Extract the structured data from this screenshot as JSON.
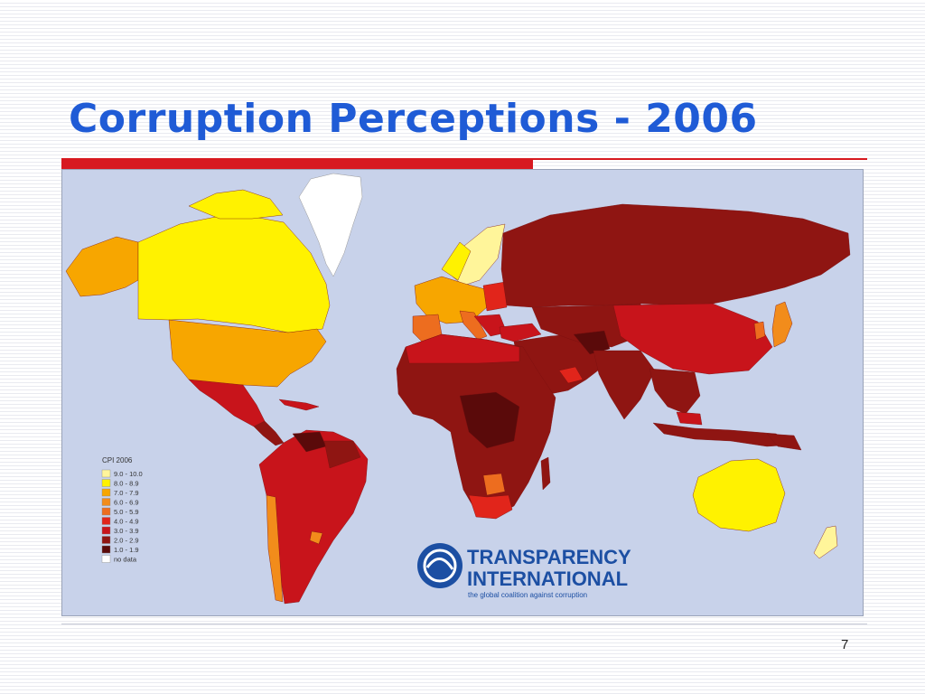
{
  "slide": {
    "title": "Corruption Perceptions - 2006",
    "page_number": "7"
  },
  "colors": {
    "title": "#1f5bd6",
    "accent_rule": "#d71920",
    "ocean": "#c8d2ea",
    "no_data": "#ffffff"
  },
  "map": {
    "legend": {
      "title": "CPI 2006",
      "items": [
        {
          "range": "9.0 - 10.0",
          "color": "#fff59a"
        },
        {
          "range": "8.0 - 8.9",
          "color": "#fff200"
        },
        {
          "range": "7.0 - 7.9",
          "color": "#f7a600"
        },
        {
          "range": "6.0 - 6.9",
          "color": "#f28c1b"
        },
        {
          "range": "5.0 - 5.9",
          "color": "#ed6d1f"
        },
        {
          "range": "4.0 - 4.9",
          "color": "#e1251b"
        },
        {
          "range": "3.0 - 3.9",
          "color": "#c8141b"
        },
        {
          "range": "2.0 - 2.9",
          "color": "#8f1512"
        },
        {
          "range": "1.0 - 1.9",
          "color": "#5a0a0a"
        },
        {
          "range": "no data",
          "color": "#ffffff"
        }
      ]
    },
    "logo": {
      "line1": "TRANSPARENCY",
      "line2": "INTERNATIONAL",
      "tagline": "the global coalition against corruption",
      "color": "#1c4fa3"
    }
  }
}
